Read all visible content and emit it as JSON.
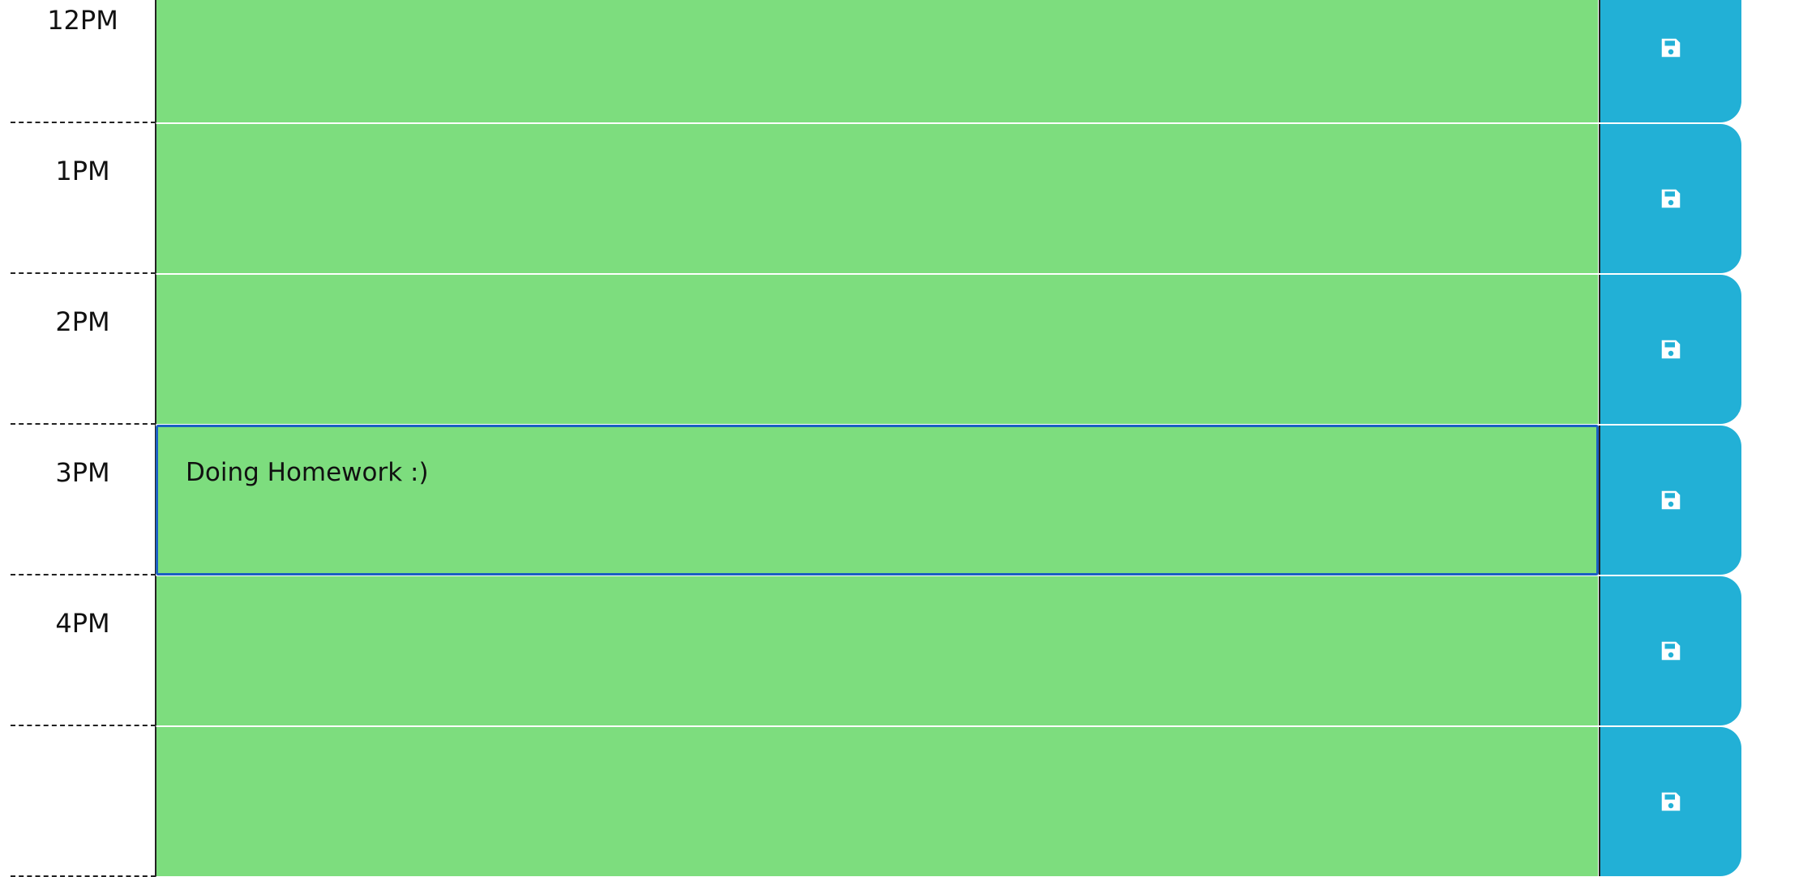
{
  "colors": {
    "present": "#7ddd7e",
    "save": "#22b0d6",
    "focus": "#1b5fc2"
  },
  "icons": {
    "save": "floppy-disk-icon"
  },
  "rows": [
    {
      "hour": "12PM",
      "text": ""
    },
    {
      "hour": "1PM",
      "text": ""
    },
    {
      "hour": "2PM",
      "text": ""
    },
    {
      "hour": "3PM",
      "text": "Doing Homework :)"
    },
    {
      "hour": "4PM",
      "text": ""
    },
    {
      "hour": "",
      "text": ""
    }
  ]
}
